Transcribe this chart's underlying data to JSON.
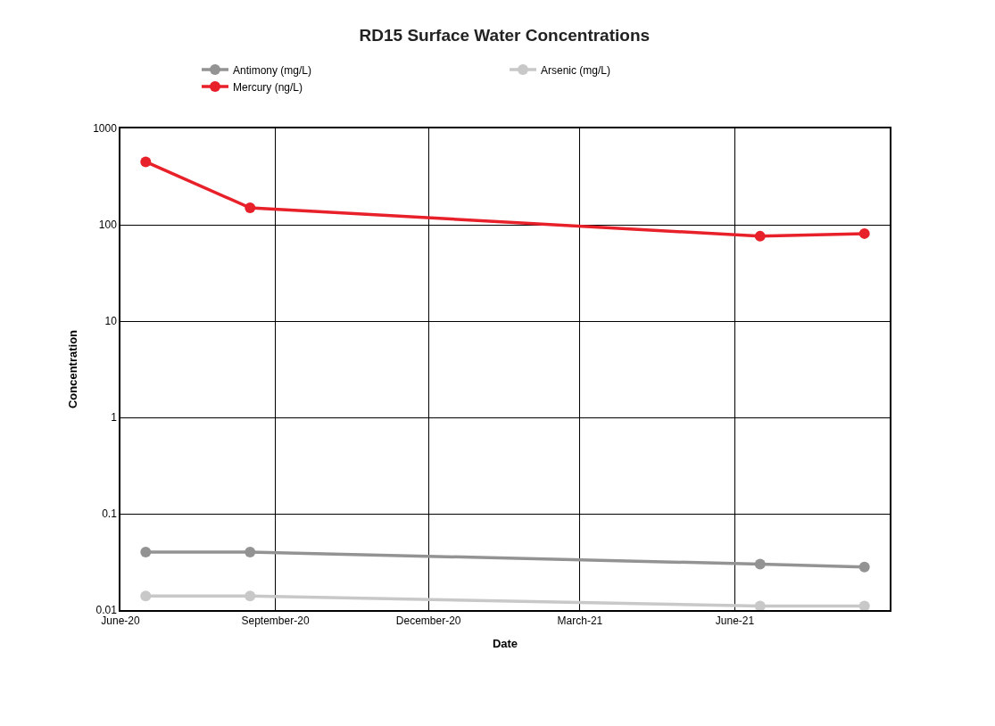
{
  "chart_data": {
    "type": "line",
    "title": "RD15 Surface Water Concentrations",
    "xlabel": "Date",
    "ylabel": "Concentration",
    "series": [
      {
        "name": "Antimony (mg/L)",
        "color": "#939393",
        "x": [
          "2020-06-16",
          "2020-08-17",
          "2021-06-16",
          "2021-08-17"
        ],
        "values": [
          0.04,
          0.04,
          0.03,
          0.028
        ]
      },
      {
        "name": "Arsenic (mg/L)",
        "color": "#c8c8c8",
        "x": [
          "2020-06-16",
          "2020-08-17",
          "2021-06-16",
          "2021-08-17"
        ],
        "values": [
          0.014,
          0.014,
          0.011,
          0.011
        ]
      },
      {
        "name": "Mercury (ng/L)",
        "color": "#e8202a",
        "x": [
          "2020-06-16",
          "2020-08-17",
          "2021-06-16",
          "2021-08-17"
        ],
        "values": [
          450,
          150,
          76,
          81
        ]
      }
    ],
    "log": "y",
    "ylim": [
      0.01,
      1000
    ],
    "yticks": [
      0.01,
      0.1,
      1,
      10,
      100,
      1000
    ],
    "xlim": [
      "2020-06-01",
      "2021-09-01"
    ],
    "xticks": [
      {
        "value": "2020-06-01",
        "label": "June-20"
      },
      {
        "value": "2020-09-01",
        "label": "September-20"
      },
      {
        "value": "2020-12-01",
        "label": "December-20"
      },
      {
        "value": "2021-03-01",
        "label": "March-21"
      },
      {
        "value": "2021-06-01",
        "label": "June-21"
      }
    ],
    "grid": true,
    "legend": "top",
    "marker": "circle",
    "line_style": "solid"
  }
}
